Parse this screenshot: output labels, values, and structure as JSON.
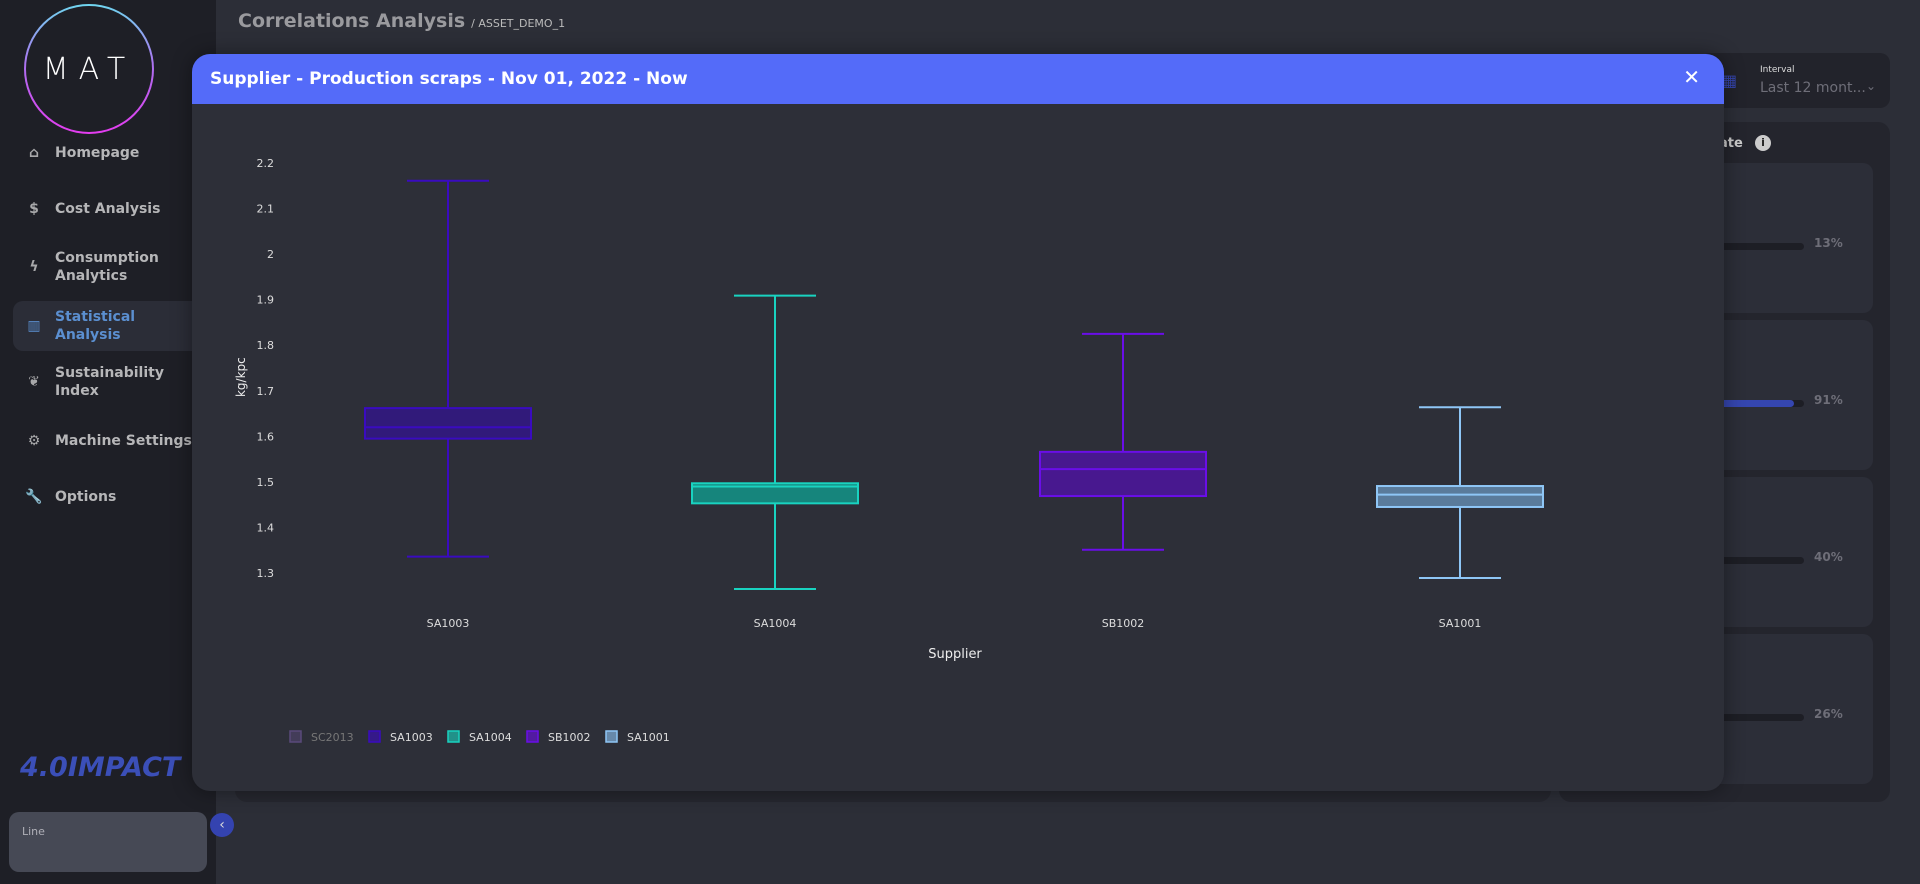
{
  "sidebar": {
    "logo": "MAT",
    "items": [
      {
        "label": "Homepage",
        "icon": "home-icon",
        "glyph": "⌂"
      },
      {
        "label": "Cost Analysis",
        "icon": "money-bag-icon",
        "glyph": "$"
      },
      {
        "label": "Consumption Analytics",
        "icon": "lightning-icon",
        "glyph": "ϟ"
      },
      {
        "label": "Statistical Analysis",
        "icon": "chart-icon",
        "glyph": "▥",
        "active": true
      },
      {
        "label": "Sustainability Index",
        "icon": "leaf-icon",
        "glyph": "❦"
      },
      {
        "label": "Machine Settings",
        "icon": "gear-icon",
        "glyph": "⚙"
      },
      {
        "label": "Options",
        "icon": "wrench-icon",
        "glyph": "🔧"
      }
    ],
    "brand": "4.0IMPACT",
    "line_card": "Line",
    "collapse_glyph": "‹"
  },
  "header": {
    "title": "Correlations Analysis",
    "asset": "/ ASSET_DEMO_1"
  },
  "filter": {
    "interval_label": "Interval",
    "interval_value": "Last 12 mont...",
    "calendar_glyph": "▦",
    "chevron": "⌄"
  },
  "right_panel": {
    "title_fragment": "ate",
    "info": "i",
    "cards": [
      {
        "pct": "13%",
        "value": 13
      },
      {
        "pct": "91%",
        "value": 91
      },
      {
        "pct": "40%",
        "value": 40
      },
      {
        "pct": "26%",
        "value": 26
      }
    ]
  },
  "modal": {
    "title": "Supplier - Production scraps - Nov 01, 2022 - Now",
    "close": "✕"
  },
  "chart_data": {
    "type": "box",
    "title": "Supplier - Production scraps - Nov 01, 2022 - Now",
    "xlabel": "Supplier",
    "ylabel": "kg/kpc",
    "ylim": [
      1.27,
      2.22
    ],
    "yticks": [
      "2.2",
      "2.1",
      "2",
      "1.9",
      "1.8",
      "1.7",
      "1.6",
      "1.5",
      "1.4",
      "1.3"
    ],
    "grid": false,
    "legend_position": "bottom-left",
    "categories": [
      "SA1003",
      "SA1004",
      "SB1002",
      "SA1001"
    ],
    "series": [
      {
        "name": "SA1003",
        "min": 1.336,
        "q1": 1.595,
        "median": 1.62,
        "q3": 1.662,
        "max": 2.161,
        "stroke": "#3a0bc0",
        "fill": "#311a7a"
      },
      {
        "name": "SA1004",
        "min": 1.265,
        "q1": 1.453,
        "median": 1.49,
        "q3": 1.497,
        "max": 1.909,
        "stroke": "#19d3c0",
        "fill": "#16857c"
      },
      {
        "name": "SB1002",
        "min": 1.351,
        "q1": 1.469,
        "median": 1.528,
        "q3": 1.566,
        "max": 1.825,
        "stroke": "#6a0ee8",
        "fill": "#48188f"
      },
      {
        "name": "SA1001",
        "min": 1.289,
        "q1": 1.445,
        "median": 1.472,
        "q3": 1.491,
        "max": 1.664,
        "stroke": "#8ec6f6",
        "fill": "#5a7b9b"
      }
    ],
    "legend": [
      {
        "name": "SC2013",
        "color": "#5a4a7a",
        "hidden": true
      },
      {
        "name": "SA1003",
        "color": "#3a0bc0"
      },
      {
        "name": "SA1004",
        "color": "#19d3c0"
      },
      {
        "name": "SB1002",
        "color": "#6a0ee8"
      },
      {
        "name": "SA1001",
        "color": "#8ec6f6"
      }
    ]
  }
}
